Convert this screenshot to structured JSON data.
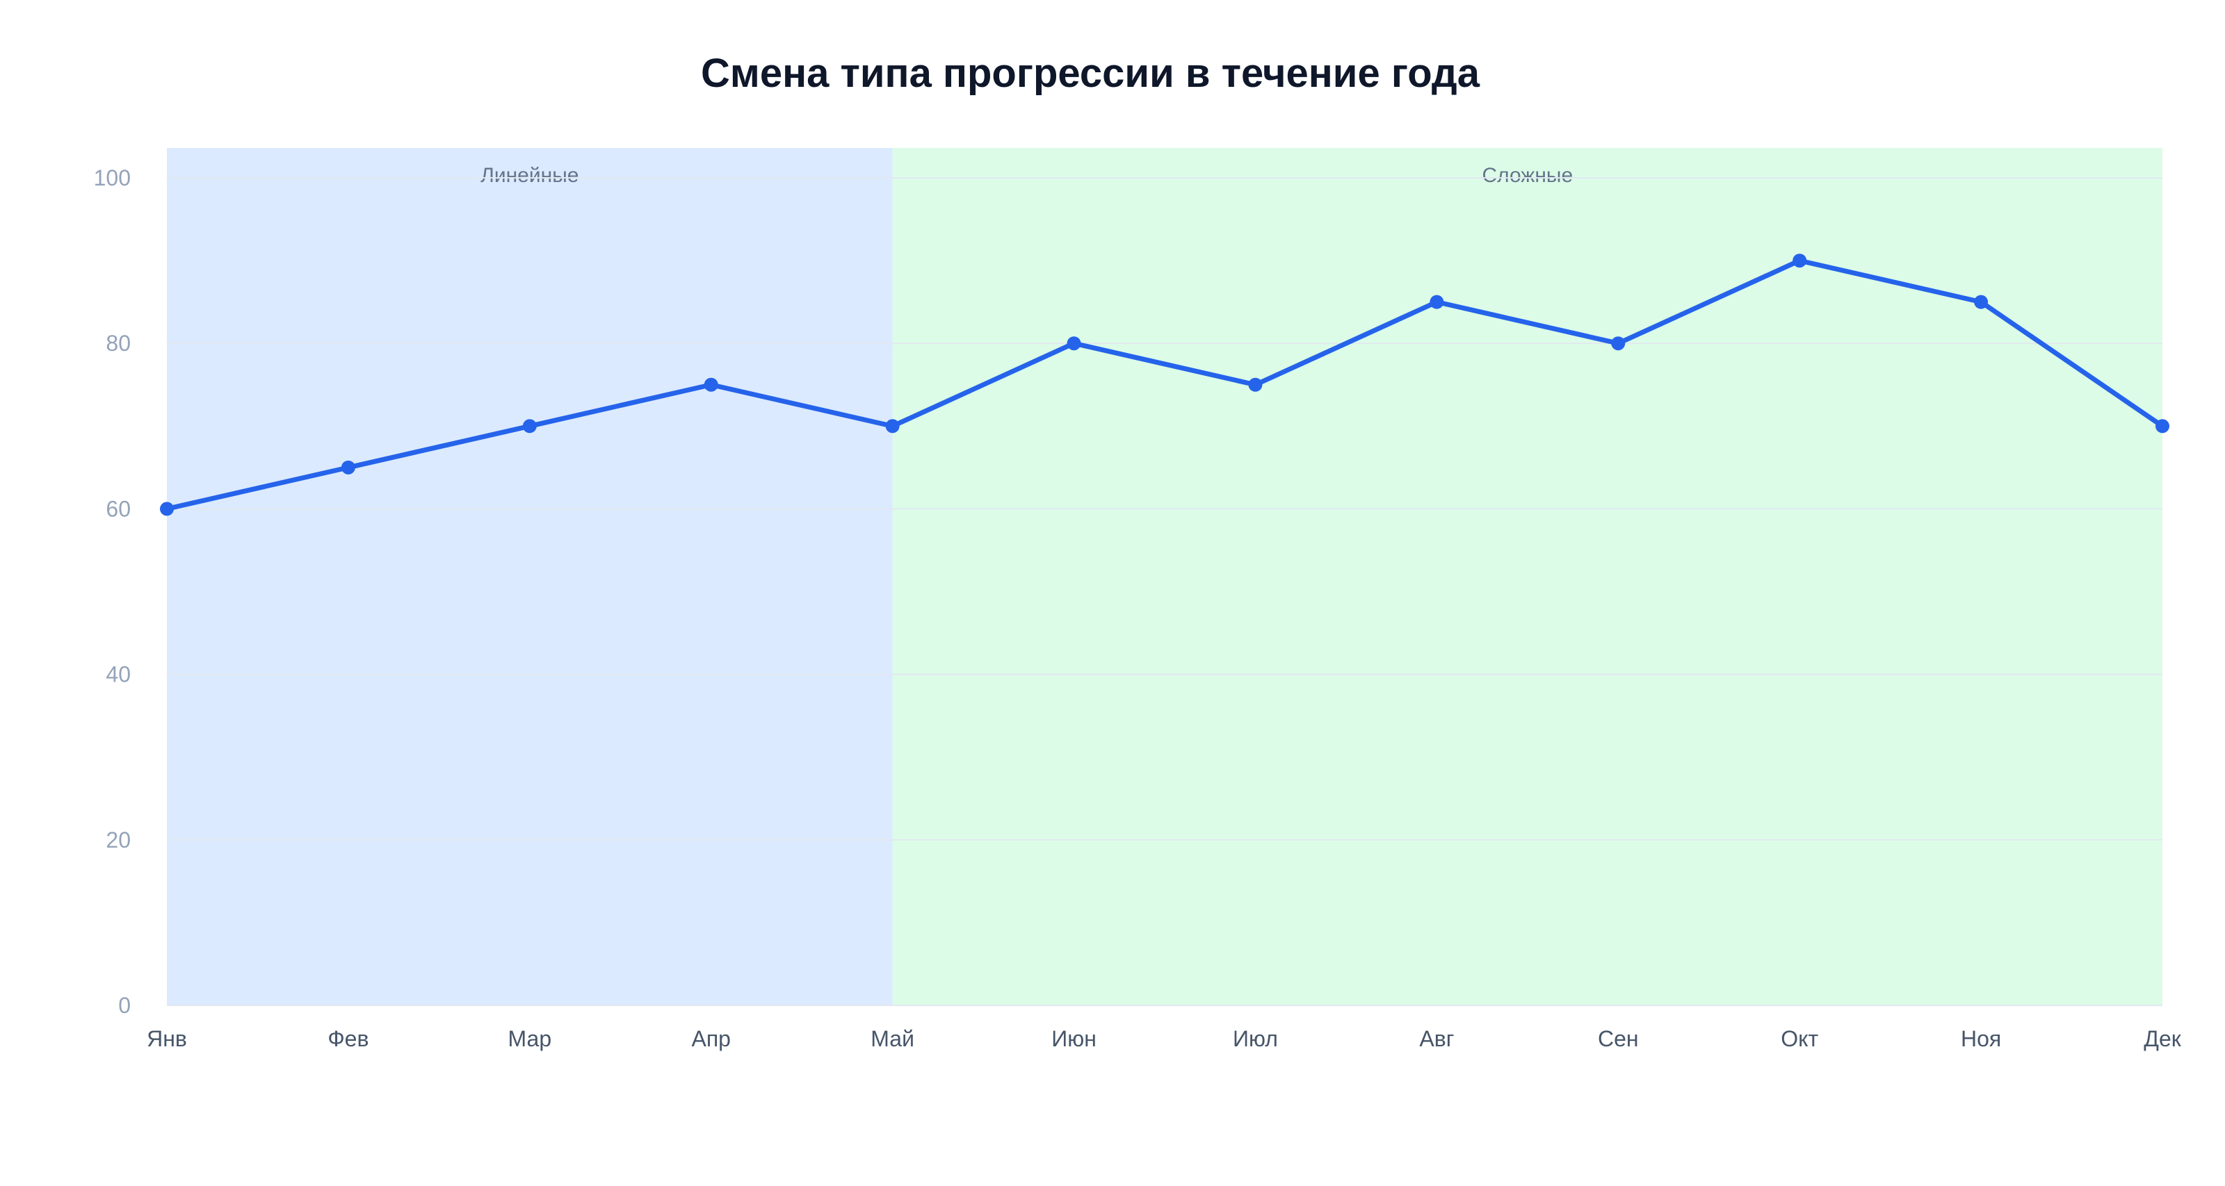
{
  "chart_data": {
    "type": "line",
    "title": "Смена типа прогрессии в течение года",
    "xlabel": "",
    "ylabel": "",
    "categories": [
      "Янв",
      "Фев",
      "Мар",
      "Апр",
      "Май",
      "Июн",
      "Июл",
      "Авг",
      "Сен",
      "Окт",
      "Ноя",
      "Дек"
    ],
    "series": [
      {
        "values": [
          60,
          65,
          70,
          75,
          70,
          80,
          75,
          85,
          80,
          90,
          85,
          70
        ],
        "color": "#2563eb"
      }
    ],
    "ylim": [
      0,
      100
    ],
    "yticks": [
      0,
      20,
      40,
      60,
      80,
      100
    ],
    "grid": true,
    "legend": "none",
    "regions": [
      {
        "label": "Линейные",
        "from": "Янв",
        "to": "Май",
        "color": "#dbeafe"
      },
      {
        "label": "Сложные",
        "from": "Май",
        "to": "Дек",
        "color": "#dcfce7"
      }
    ]
  }
}
